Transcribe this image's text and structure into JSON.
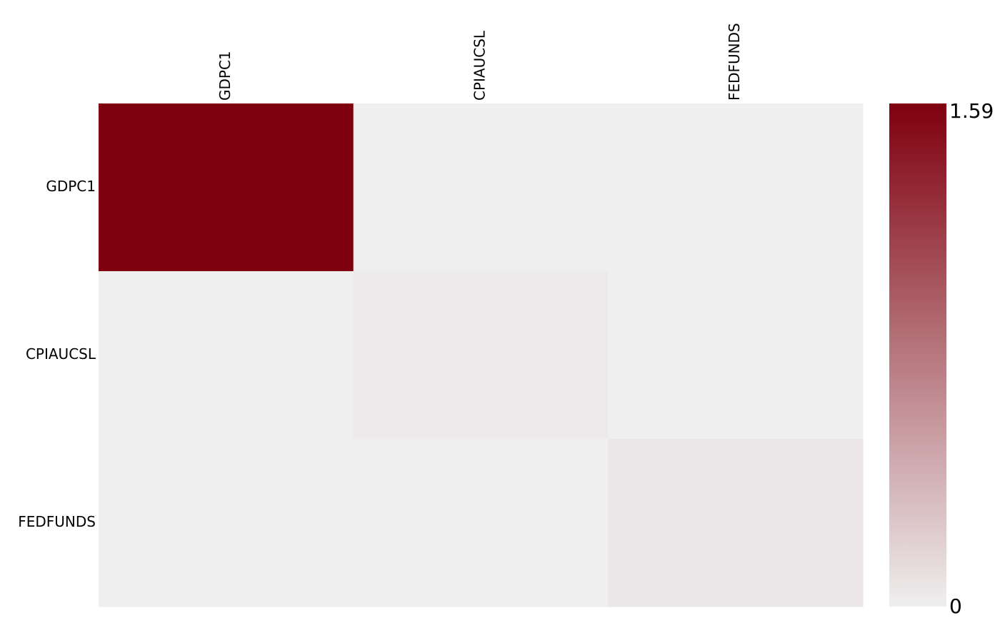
{
  "chart_data": {
    "type": "heatmap",
    "title": "",
    "rows": [
      "GDPC1",
      "CPIAUCSL",
      "FEDFUNDS"
    ],
    "columns": [
      "GDPC1",
      "CPIAUCSL",
      "FEDFUNDS"
    ],
    "values": [
      [
        1.59,
        0.0,
        0.0
      ],
      [
        0.0,
        0.03,
        0.0
      ],
      [
        0.0,
        0.0,
        0.05
      ]
    ],
    "color_scale": {
      "min": 0,
      "max": 1.59,
      "min_label": "0",
      "max_label": "1.59",
      "low_color": "#efefef",
      "high_color": "#7f000e"
    },
    "legend_position": "right"
  }
}
